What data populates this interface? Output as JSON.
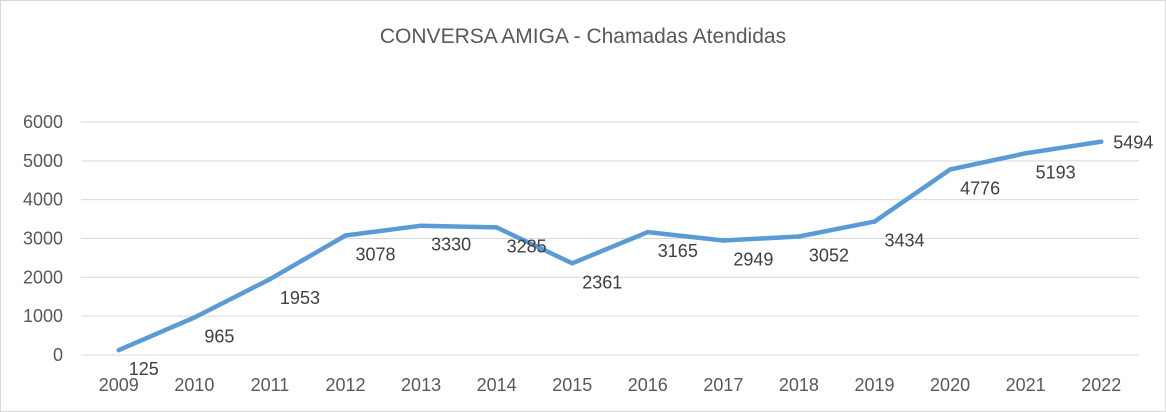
{
  "chart_data": {
    "type": "line",
    "title": "CONVERSA AMIGA - Chamadas Atendidas",
    "xlabel": "",
    "ylabel": "",
    "categories": [
      "2009",
      "2010",
      "2011",
      "2012",
      "2013",
      "2014",
      "2015",
      "2016",
      "2017",
      "2018",
      "2019",
      "2020",
      "2021",
      "2022"
    ],
    "series": [
      {
        "name": "Chamadas Atendidas",
        "color": "#5b9bd5",
        "values": [
          125,
          965,
          1953,
          3078,
          3330,
          3285,
          2361,
          3165,
          2949,
          3052,
          3434,
          4776,
          5193,
          5494
        ]
      }
    ],
    "ylim": [
      0,
      6000
    ],
    "yticks": [
      0,
      1000,
      2000,
      3000,
      4000,
      5000,
      6000
    ],
    "grid": true,
    "legend": "none"
  }
}
